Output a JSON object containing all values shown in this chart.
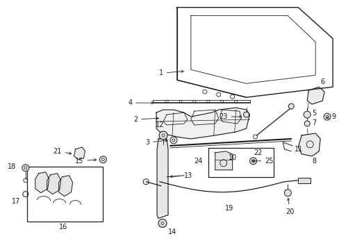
{
  "bg_color": "#ffffff",
  "line_color": "#1a1a1a",
  "fig_width": 4.89,
  "fig_height": 3.6,
  "dpi": 100,
  "label_fontsize": 7.0
}
